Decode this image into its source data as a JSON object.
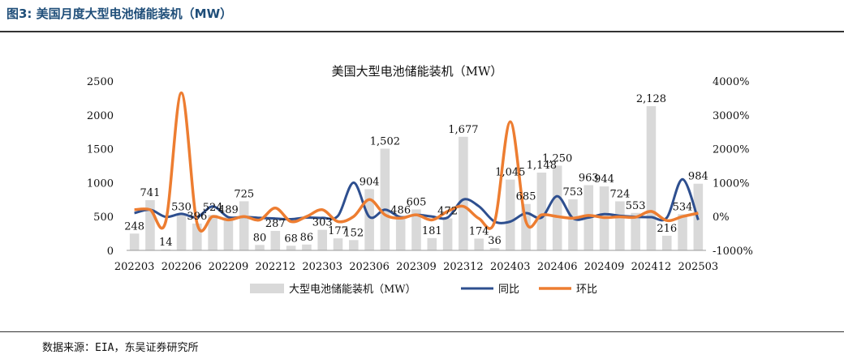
{
  "header": {
    "figure_title": "图3:  美国月度大型电池储能装机（MW）"
  },
  "footer": {
    "source": "数据来源：EIA，东吴证券研究所"
  },
  "colors": {
    "bar": "#d9d9d9",
    "yoy": "#2e4f8f",
    "mom": "#ed7d31"
  },
  "chart_data": {
    "type": "bar",
    "title": "美国大型电池储能装机（MW）",
    "categories": [
      "202203",
      "202204",
      "202205",
      "202206",
      "202207",
      "202208",
      "202209",
      "202210",
      "202211",
      "202212",
      "202301",
      "202302",
      "202303",
      "202304",
      "202305",
      "202306",
      "202307",
      "202308",
      "202309",
      "202310",
      "202311",
      "202312",
      "202401",
      "202402",
      "202403",
      "202404",
      "202405",
      "202406",
      "202407",
      "202408",
      "202409",
      "202410",
      "202411",
      "202412",
      "202501",
      "202502",
      "202503"
    ],
    "x_tick_labels": [
      "202203",
      "202206",
      "202209",
      "202212",
      "202303",
      "202306",
      "202309",
      "202312",
      "202403",
      "202406",
      "202409",
      "202412",
      "202503"
    ],
    "series": [
      {
        "name": "大型电池储能装机（MW）",
        "axis": "left",
        "type": "bar",
        "values": [
          248,
          741,
          14,
          530,
          396,
          524,
          489,
          725,
          80,
          287,
          68,
          86,
          303,
          177,
          152,
          904,
          1502,
          486,
          605,
          181,
          472,
          1677,
          174,
          36,
          1045,
          685,
          1148,
          1250,
          753,
          963,
          944,
          724,
          553,
          2128,
          216,
          534,
          984
        ]
      },
      {
        "name": "同比",
        "axis": "right",
        "type": "line",
        "values": [
          100,
          200,
          -10,
          80,
          -20,
          300,
          -20,
          -10,
          -40,
          -60,
          -80,
          -30,
          -40,
          20,
          1000,
          -10,
          200,
          -20,
          50,
          0,
          -30,
          500,
          300,
          -150,
          -150,
          100,
          -30,
          600,
          -50,
          -30,
          70,
          20,
          -10,
          -20,
          -30,
          1100,
          -100
        ]
      },
      {
        "name": "环比",
        "axis": "right",
        "type": "line",
        "values": [
          200,
          200,
          -150,
          3650,
          -200,
          0,
          -100,
          0,
          -100,
          250,
          -150,
          0,
          200,
          -150,
          0,
          500,
          50,
          -50,
          50,
          -100,
          150,
          300,
          -60,
          -150,
          2800,
          -150,
          50,
          0,
          -50,
          30,
          -30,
          -10,
          -20,
          150,
          -120,
          0,
          100
        ]
      }
    ],
    "y_left": {
      "min": 0,
      "max": 2500,
      "ticks": [
        0,
        500,
        1000,
        1500,
        2000,
        2500
      ]
    },
    "y_right": {
      "min": -1000,
      "max": 4000,
      "ticks": [
        "-1000%",
        "0%",
        "1000%",
        "2000%",
        "3000%",
        "4000%"
      ],
      "tick_values": [
        -1000,
        0,
        1000,
        2000,
        3000,
        4000
      ]
    },
    "legend_position": "bottom",
    "grid": false
  }
}
